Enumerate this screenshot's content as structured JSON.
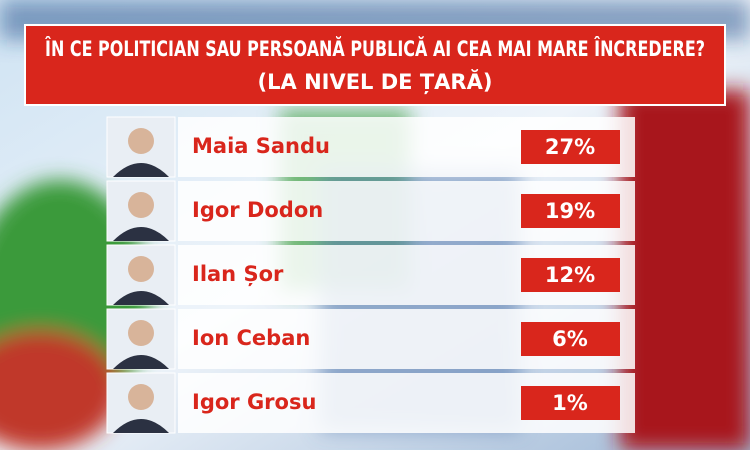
{
  "chart_data": {
    "type": "ranking",
    "title": "ÎN CE POLITICIAN SAU PERSOANĂ PUBLICĂ AI CEA MAI MARE ÎNCREDERE?",
    "subtitle": "(LA NIVEL DE ȚARĂ)",
    "categories": [
      "Maia Sandu",
      "Igor Dodon",
      "Ilan Șor",
      "Ion Ceban",
      "Igor Grosu"
    ],
    "values": [
      27,
      19,
      12,
      6,
      1
    ],
    "value_labels": [
      "27%",
      "19%",
      "12%",
      "6%",
      "1%"
    ],
    "color": "#d9261c"
  }
}
